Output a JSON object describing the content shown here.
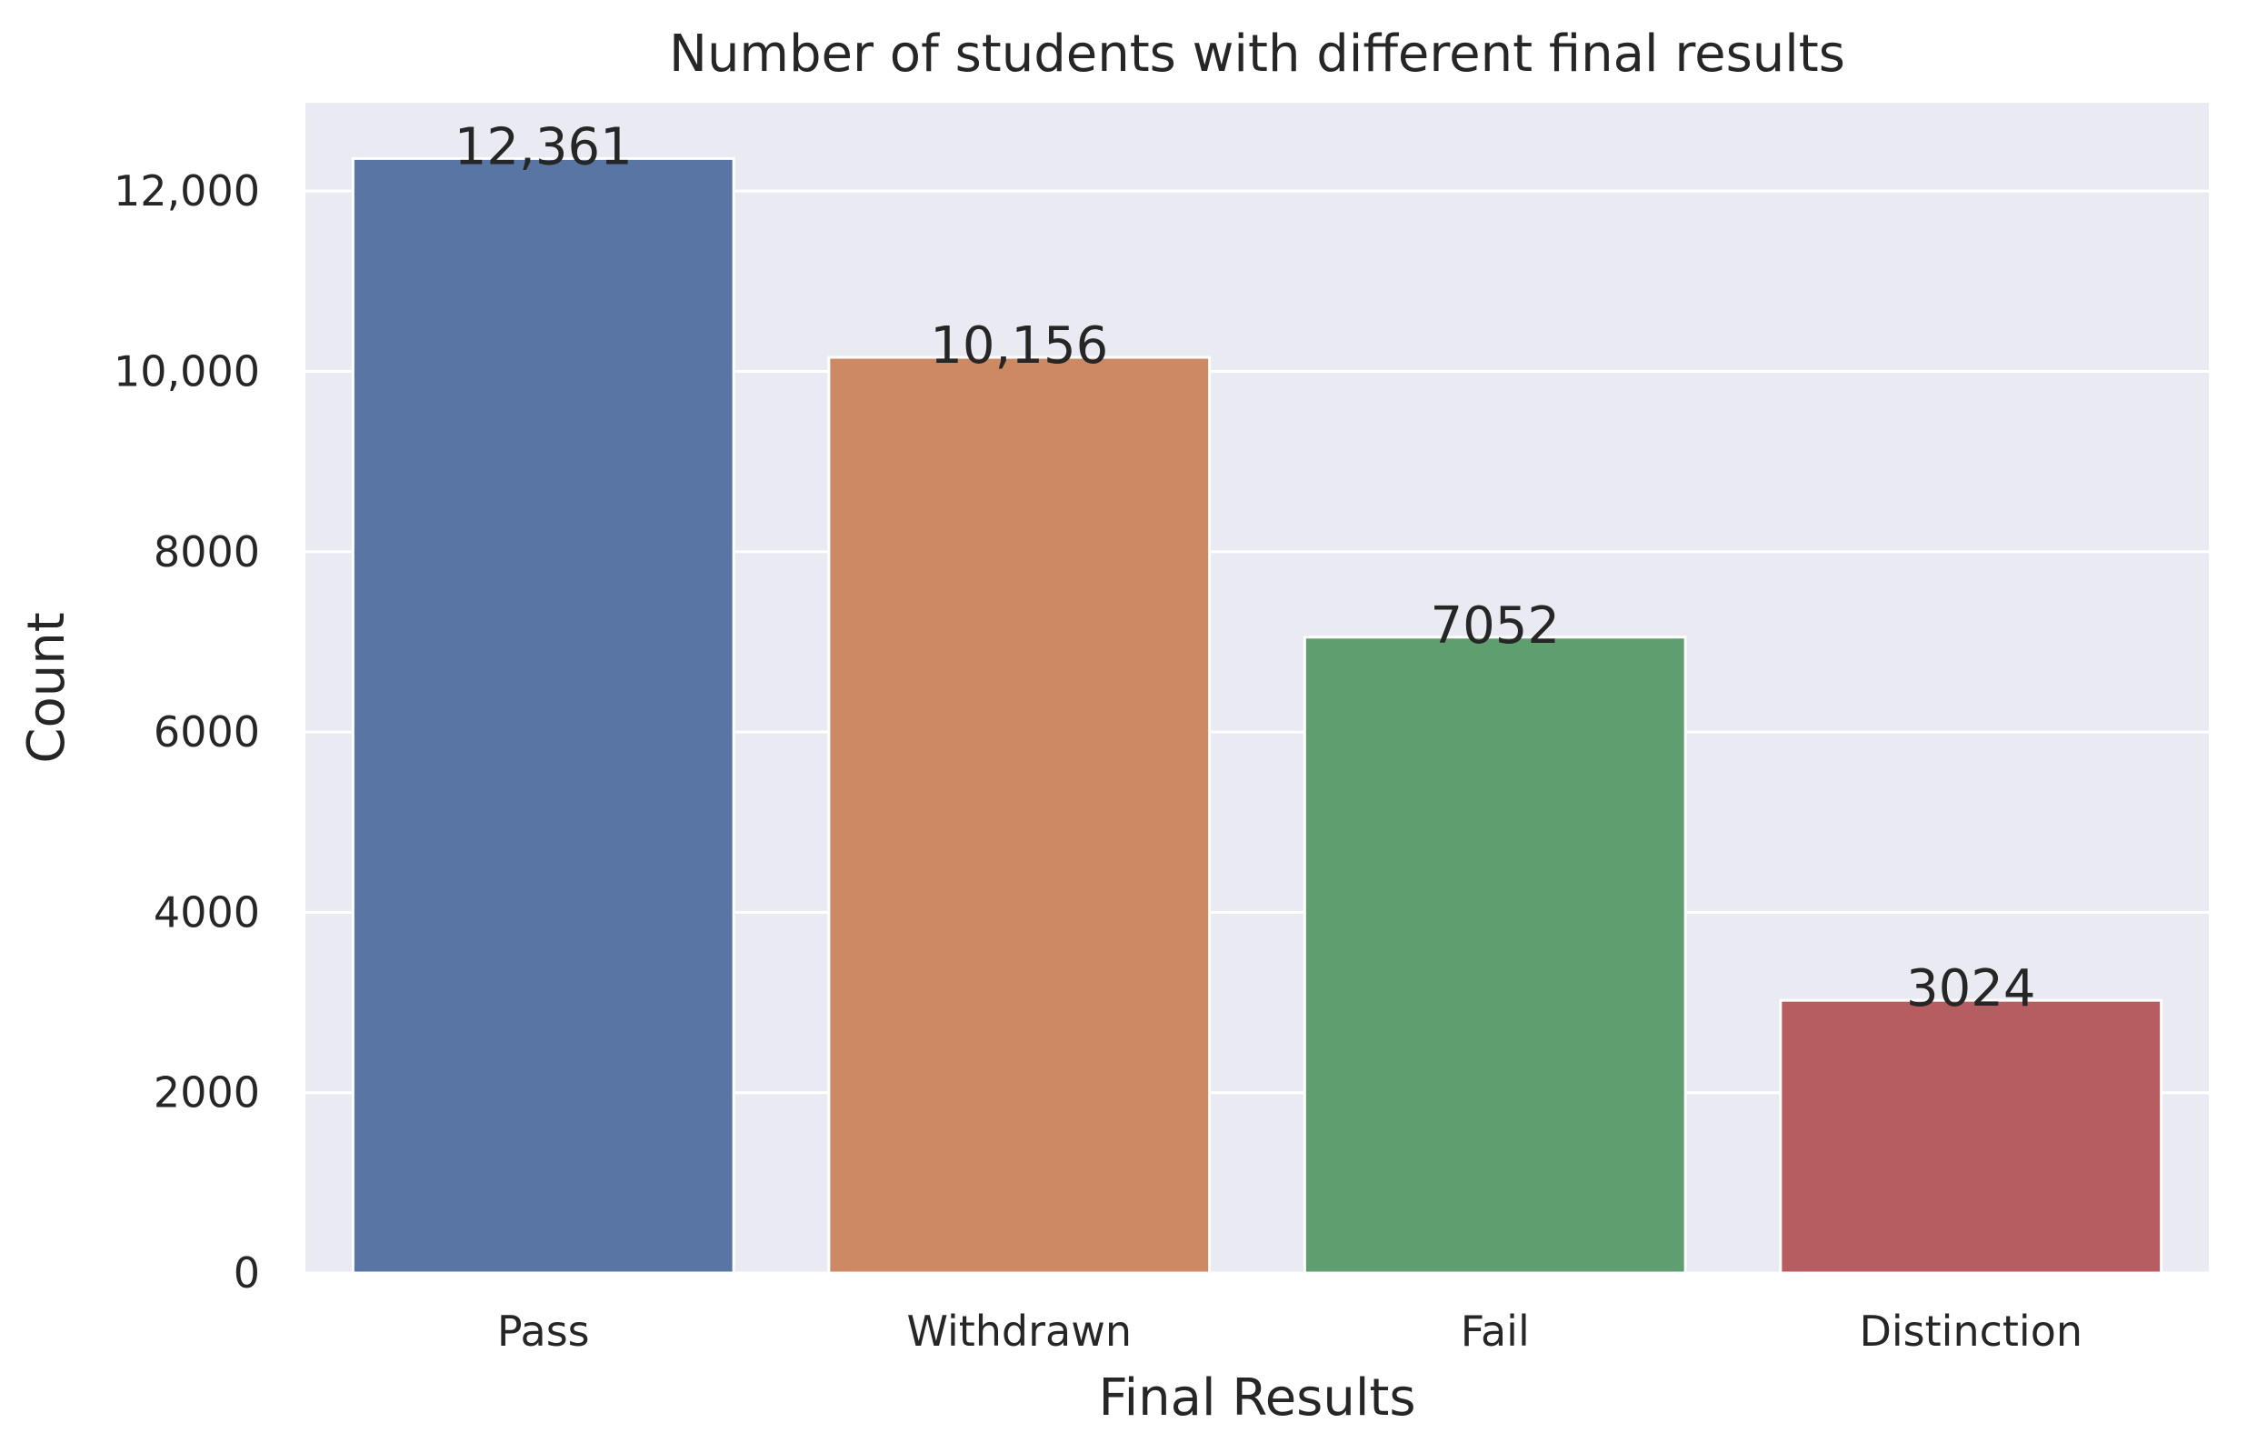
{
  "chart_data": {
    "type": "bar",
    "title": "Number of students with different final results",
    "xlabel": "Final Results",
    "ylabel": "Count",
    "categories": [
      "Pass",
      "Withdrawn",
      "Fail",
      "Distinction"
    ],
    "values": [
      12361,
      10156,
      7052,
      3024
    ],
    "value_labels": [
      "12,361",
      "10,156",
      "7052",
      "3024"
    ],
    "colors": [
      "#5975a4",
      "#cc8963",
      "#5f9e6e",
      "#b55d60"
    ],
    "ylim": [
      0,
      12980
    ],
    "yticks": [
      0,
      2000,
      4000,
      6000,
      8000,
      10000,
      12000
    ],
    "ytick_labels": [
      "0",
      "2000",
      "4000",
      "6000",
      "8000",
      "10,000",
      "12,000"
    ],
    "grid": true,
    "background_color": "#eaeaf2",
    "grid_color": "#ffffff"
  }
}
